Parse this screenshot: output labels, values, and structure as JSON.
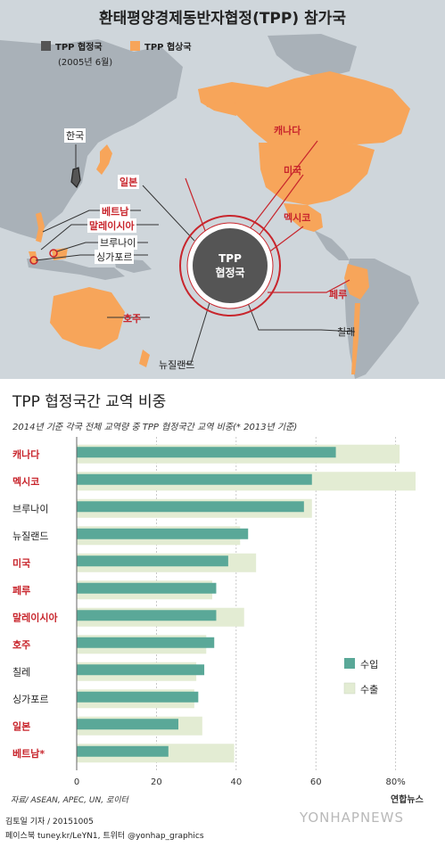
{
  "header": {
    "title": "환태평양경제동반자협정(TPP) 참가국"
  },
  "map_legend": {
    "member_label": "TPP 협정국",
    "member_note": "(2005년 6월)",
    "negotiating_label": "TPP 협상국",
    "member_color": "#555555",
    "negotiating_color": "#f7a55a"
  },
  "map": {
    "hub_line1": "TPP",
    "hub_line2": "협정국",
    "countries": {
      "korea": "한국",
      "canada": "캐나다",
      "usa": "미국",
      "mexico": "멕시코",
      "peru": "페루",
      "chile": "칠레",
      "japan": "일본",
      "vietnam": "베트남",
      "malaysia": "말레이시아",
      "brunei": "브루나이",
      "singapore": "싱가포르",
      "australia": "호주",
      "newzealand": "뉴질랜드"
    },
    "accent_red": "#c8252c"
  },
  "chart_title": "TPP 협정국간 교역 비중",
  "chart_subtitle": "2014년 기준 각국 전체 교역량 중 TPP 협정국간 교역 비중(* 2013년 기준)",
  "chart_data": {
    "type": "bar",
    "orientation": "horizontal",
    "categories": [
      "캐나다",
      "멕시코",
      "브루나이",
      "뉴질랜드",
      "미국",
      "페루",
      "말레이시아",
      "호주",
      "칠레",
      "싱가포르",
      "일본",
      "베트남*"
    ],
    "red_categories": [
      "캐나다",
      "멕시코",
      "미국",
      "페루",
      "말레이시아",
      "호주",
      "일본",
      "베트남*"
    ],
    "series": [
      {
        "name": "수입",
        "color": "#5aa898",
        "values": [
          65,
          59,
          57,
          43,
          38,
          35,
          35,
          34.5,
          32,
          30.5,
          25.5,
          23
        ]
      },
      {
        "name": "수출",
        "color": "#e3ecd3",
        "values": [
          81,
          85,
          59,
          41,
          45,
          34,
          42,
          32.5,
          30,
          29.5,
          31.5,
          39.5
        ]
      }
    ],
    "x_ticks": [
      "0",
      "20",
      "40",
      "60",
      "80%"
    ],
    "xlim": [
      0,
      85
    ],
    "grid": true,
    "legend_position": "bottom-right"
  },
  "footer": {
    "source": "자료/ ASEAN, APEC, UN, 로이터",
    "credit": "김토일 기자 / 20151005",
    "sns": "페이스북 tuney.kr/LeYN1, 트위터 @yonhap_graphics",
    "logo": "연합뉴스",
    "watermark": "YONHAPNEWS"
  }
}
